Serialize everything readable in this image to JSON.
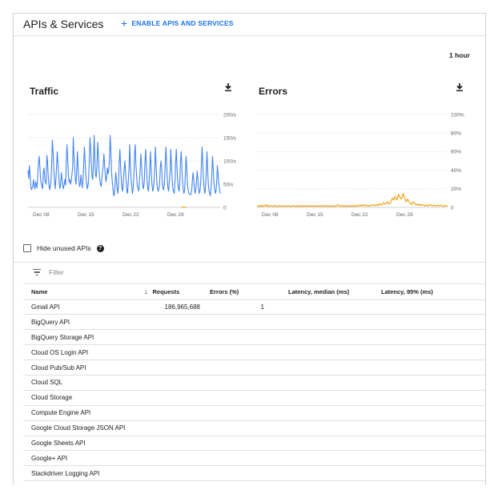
{
  "header": {
    "title": "APIs & Services",
    "enable_label": "ENABLE APIS AND SERVICES"
  },
  "time_range": "1 hour",
  "colors": {
    "traffic_line": "#4285f4",
    "errors_line": "#f29900",
    "accent": "#1a73e8"
  },
  "charts": [
    {
      "type": "line",
      "title": "Traffic",
      "x_ticks": [
        "Dec 08",
        "Dec 15",
        "Dec 22",
        "Dec 29"
      ],
      "y_ticks": [
        "200/s",
        "150/s",
        "100/s",
        "50/s",
        "0"
      ],
      "ylim": [
        0,
        200
      ],
      "series": [
        {
          "color": "#4285f4",
          "values": [
            80,
            62,
            90,
            70,
            45,
            38,
            42,
            48,
            60,
            45,
            40,
            55,
            50,
            42,
            70,
            95,
            110,
            88,
            60,
            52,
            45,
            40,
            75,
            85,
            60,
            55,
            50,
            112,
            100,
            70,
            50,
            38,
            45,
            60,
            95,
            145,
            120,
            80,
            60,
            40,
            60,
            90,
            120,
            95,
            70,
            50,
            40,
            55,
            75,
            60,
            45,
            40,
            50,
            60,
            48,
            100,
            135,
            100,
            70,
            55,
            60,
            50,
            55,
            70,
            85,
            150,
            110,
            85,
            60,
            50,
            80,
            120,
            85,
            60,
            45,
            50,
            70,
            55,
            42,
            60,
            95,
            130,
            100,
            70,
            55,
            40,
            45,
            60,
            100,
            150,
            125,
            95,
            65,
            60,
            95,
            155,
            105,
            70,
            65,
            90,
            140,
            115,
            80,
            60,
            50,
            45,
            60,
            75,
            90,
            115,
            90,
            70,
            55,
            65,
            85,
            72,
            80,
            105,
            155,
            120,
            80,
            55,
            40,
            25,
            28,
            50,
            75,
            60,
            40,
            30,
            50,
            100,
            125,
            85,
            60,
            40,
            35,
            60,
            80,
            100,
            80,
            55,
            35,
            30,
            55,
            80,
            135,
            95,
            60,
            45,
            30,
            40,
            70,
            115,
            135,
            90,
            65,
            45,
            40,
            35,
            55,
            80,
            115,
            95,
            65,
            45,
            40,
            55,
            100,
            125,
            90,
            60,
            40,
            35,
            55,
            90,
            120,
            75,
            50,
            35,
            40,
            55,
            90,
            130,
            90,
            55,
            40,
            35,
            40,
            50,
            85,
            100,
            80,
            50,
            40,
            38,
            55,
            90,
            130,
            100,
            60,
            40,
            35,
            55,
            75,
            125,
            95,
            60,
            40,
            35,
            30,
            55,
            95,
            125,
            85,
            55,
            40,
            35,
            55,
            100,
            120,
            85,
            55,
            38,
            30,
            40,
            70,
            110,
            85,
            50,
            38,
            30,
            28,
            28,
            28,
            35,
            55,
            75,
            60,
            40,
            30,
            40,
            55,
            78,
            60,
            40,
            30,
            35,
            55,
            90,
            130,
            95,
            60,
            40,
            30,
            45,
            75,
            120,
            85,
            50,
            35,
            30,
            25,
            45,
            70,
            110,
            85,
            55,
            40,
            30,
            35,
            55,
            90,
            70,
            50,
            40,
            30
          ]
        }
      ],
      "markers": [
        {
          "x_fraction": 0.81,
          "y": 0,
          "color": "#f29900"
        }
      ]
    },
    {
      "type": "line",
      "title": "Errors",
      "x_ticks": [
        "Dec 08",
        "Dec 15",
        "Dec 22",
        "Dec 29"
      ],
      "y_ticks": [
        "100%",
        "80%",
        "60%",
        "40%",
        "20%",
        "0"
      ],
      "ylim": [
        0,
        100
      ],
      "series": [
        {
          "color": "#f29900",
          "values": [
            1,
            1.5,
            2,
            1,
            1.5,
            2.5,
            1,
            2,
            1.5,
            1,
            2,
            1.5,
            2,
            3,
            1.5,
            1,
            2,
            1.5,
            1,
            1.5,
            2,
            1.5,
            1,
            2,
            1.5,
            1,
            2,
            1.5,
            1,
            1,
            1.5,
            2,
            1,
            1.5,
            1,
            1.5,
            2,
            1,
            1.5,
            1,
            2,
            1.5,
            1,
            1.5,
            2,
            1,
            1.5,
            1,
            1,
            1.5,
            2,
            1.5,
            1,
            1.5,
            2,
            1,
            1.5,
            1,
            2,
            1.5,
            1,
            1.5,
            2,
            1,
            1.5,
            1,
            1.5,
            2,
            1,
            1.5,
            1,
            2,
            1.5,
            1,
            1.5,
            2,
            1,
            1.5,
            1,
            1.5,
            2,
            1,
            1.5,
            1,
            1.5,
            2,
            1,
            1.5,
            2,
            1.5,
            1,
            1.5,
            2,
            1,
            1.5,
            1,
            2,
            1.5,
            1,
            1.5,
            2,
            1,
            1.5,
            1,
            1.5,
            2,
            1,
            1.5,
            1,
            1.5,
            2,
            3,
            2.5,
            1.5,
            1,
            2,
            1.5,
            1,
            1.5,
            2,
            1,
            1.5,
            1,
            2,
            1.5,
            1,
            1.5,
            2,
            1,
            1.5,
            1,
            2,
            1.5,
            1,
            2,
            1.5,
            1,
            2,
            1.5,
            1.5,
            2,
            2.5,
            1.5,
            2,
            3,
            2,
            1.5,
            2,
            3,
            2.5,
            1.5,
            2,
            1.5,
            2,
            1.5,
            2,
            1.5,
            2,
            2.5,
            3,
            2.5,
            1.5,
            2,
            2.5,
            2,
            3,
            2.5,
            2,
            3.5,
            4,
            3,
            2.5,
            3,
            4,
            5,
            4,
            3.5,
            4,
            5,
            6,
            5,
            4,
            3.5,
            4.5,
            6,
            8,
            10,
            9,
            8,
            10,
            12,
            10,
            8,
            9,
            12,
            14,
            12,
            10,
            9,
            10,
            12,
            15,
            12,
            10,
            8,
            6,
            7,
            9,
            8,
            6,
            5,
            4,
            3,
            4,
            5,
            6,
            5,
            4,
            3,
            2.5,
            3,
            4,
            3,
            2,
            2.5,
            3,
            2,
            2.5,
            3,
            2.5,
            2,
            1.5,
            2,
            2.5,
            2,
            1.5,
            2,
            2.5,
            3,
            2.5,
            2,
            1.5,
            2,
            2.5,
            2,
            1.5,
            2,
            1.5,
            2,
            2.5,
            2,
            1.5,
            2,
            2.5,
            2,
            1.5,
            1,
            1.5,
            2,
            1.5,
            2,
            1.5,
            1
          ]
        }
      ]
    }
  ],
  "hide_unused_label": "Hide unused APIs",
  "filter_placeholder": "Filter",
  "table": {
    "columns": [
      "Name",
      "Requests",
      "Errors (%)",
      "Latency, median (ms)",
      "Latency, 95% (ms)"
    ],
    "rows": [
      {
        "name": "Gmail API",
        "requests": "186,965,688",
        "errors": "1",
        "lat_median": "",
        "lat_95": ""
      },
      {
        "name": "BigQuery API",
        "requests": "",
        "errors": "",
        "lat_median": "",
        "lat_95": ""
      },
      {
        "name": "BigQuery Storage API",
        "requests": "",
        "errors": "",
        "lat_median": "",
        "lat_95": ""
      },
      {
        "name": "Cloud OS Login API",
        "requests": "",
        "errors": "",
        "lat_median": "",
        "lat_95": ""
      },
      {
        "name": "Cloud Pub/Sub API",
        "requests": "",
        "errors": "",
        "lat_median": "",
        "lat_95": ""
      },
      {
        "name": "Cloud SQL",
        "requests": "",
        "errors": "",
        "lat_median": "",
        "lat_95": ""
      },
      {
        "name": "Cloud Storage",
        "requests": "",
        "errors": "",
        "lat_median": "",
        "lat_95": ""
      },
      {
        "name": "Compute Engine API",
        "requests": "",
        "errors": "",
        "lat_median": "",
        "lat_95": ""
      },
      {
        "name": "Google Cloud Storage JSON API",
        "requests": "",
        "errors": "",
        "lat_median": "",
        "lat_95": ""
      },
      {
        "name": "Google Sheets API",
        "requests": "",
        "errors": "",
        "lat_median": "",
        "lat_95": ""
      },
      {
        "name": "Google+ API",
        "requests": "",
        "errors": "",
        "lat_median": "",
        "lat_95": ""
      },
      {
        "name": "Stackdriver Logging API",
        "requests": "",
        "errors": "",
        "lat_median": "",
        "lat_95": ""
      }
    ]
  },
  "chart_data": [
    {
      "type": "line",
      "title": "Traffic",
      "xlabel": "",
      "ylabel": "",
      "x_tick_labels": [
        "Dec 08",
        "Dec 15",
        "Dec 22",
        "Dec 29"
      ],
      "y_tick_labels": [
        "200/s",
        "150/s",
        "100/s",
        "50/s",
        "0"
      ],
      "ylim": [
        0,
        200
      ],
      "grid": "horizontal dotted"
    },
    {
      "type": "line",
      "title": "Errors",
      "xlabel": "",
      "ylabel": "",
      "x_tick_labels": [
        "Dec 08",
        "Dec 15",
        "Dec 22",
        "Dec 29"
      ],
      "y_tick_labels": [
        "100%",
        "80%",
        "60%",
        "40%",
        "20%",
        "0"
      ],
      "ylim": [
        0,
        100
      ],
      "grid": "horizontal dotted"
    }
  ]
}
